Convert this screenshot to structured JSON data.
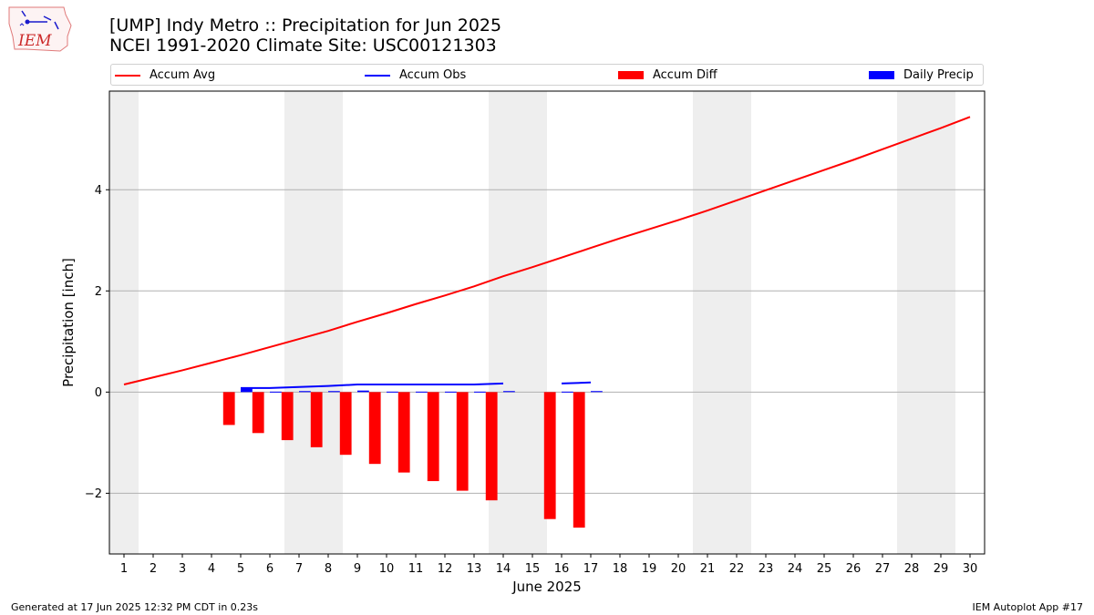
{
  "header": {
    "title": "[UMP] Indy Metro :: Precipitation for Jun 2025",
    "subtitle": "NCEI 1991-2020 Climate Site: USC00121303"
  },
  "logo": {
    "text": "IEM"
  },
  "footer": {
    "left": "Generated at 17 Jun 2025 12:32 PM CDT in 0.23s",
    "right": "IEM Autoplot App #17"
  },
  "legend": {
    "accum_avg": "Accum Avg",
    "accum_obs": "Accum Obs",
    "accum_diff": "Accum Diff",
    "daily_precip": "Daily Precip"
  },
  "colors": {
    "accum_avg": "#ff0000",
    "accum_obs": "#0000ff",
    "accum_diff": "#ff0000",
    "daily_precip": "#0000ff",
    "weekend_shade": "#eeeeee",
    "grid": "#b0b0b0"
  },
  "chart_data": {
    "type": "bar",
    "xlabel": "June 2025",
    "ylabel": "Precipitation [inch]",
    "xlim": [
      0.5,
      30.5
    ],
    "ylim": [
      -3.2,
      5.95
    ],
    "yticks": [
      -2,
      0,
      2,
      4
    ],
    "ytick_labels": [
      "−2",
      "0",
      "2",
      "4"
    ],
    "days": [
      1,
      2,
      3,
      4,
      5,
      6,
      7,
      8,
      9,
      10,
      11,
      12,
      13,
      14,
      15,
      16,
      17,
      18,
      19,
      20,
      21,
      22,
      23,
      24,
      25,
      26,
      27,
      28,
      29,
      30
    ],
    "grid": "horizontal",
    "legend_position": "top",
    "weekend_bands": [
      [
        0.5,
        1.5
      ],
      [
        6.5,
        8.5
      ],
      [
        13.5,
        15.5
      ],
      [
        20.5,
        22.5
      ],
      [
        27.5,
        29.5
      ]
    ],
    "accum_avg": [
      0.15,
      0.29,
      0.43,
      0.58,
      0.73,
      0.89,
      1.05,
      1.21,
      1.39,
      1.56,
      1.74,
      1.91,
      2.09,
      2.29,
      2.47,
      2.66,
      2.85,
      3.04,
      3.22,
      3.4,
      3.59,
      3.79,
      3.99,
      4.19,
      4.39,
      4.59,
      4.8,
      5.01,
      5.22,
      5.44
    ],
    "accum_obs": [
      null,
      null,
      null,
      null,
      0.08,
      0.08,
      0.1,
      0.12,
      0.15,
      0.15,
      0.15,
      0.15,
      0.15,
      0.17,
      null,
      0.17,
      0.19,
      null,
      null,
      null,
      null,
      null,
      null,
      null,
      null,
      null,
      null,
      null,
      null,
      null
    ],
    "accum_diff": [
      null,
      null,
      null,
      null,
      -0.65,
      -0.81,
      -0.95,
      -1.09,
      -1.24,
      -1.42,
      -1.59,
      -1.76,
      -1.95,
      -2.14,
      null,
      -2.51,
      -2.68,
      null,
      null,
      null,
      null,
      null,
      null,
      null,
      null,
      null,
      null,
      null,
      null,
      null
    ],
    "daily_precip": [
      null,
      null,
      null,
      null,
      0.08,
      0.0,
      0.02,
      0.02,
      0.03,
      0.0,
      0.0,
      0.0,
      0.0,
      0.02,
      null,
      0.0,
      0.02,
      null,
      null,
      null,
      null,
      null,
      null,
      null,
      null,
      null,
      null,
      null,
      null,
      null
    ]
  }
}
